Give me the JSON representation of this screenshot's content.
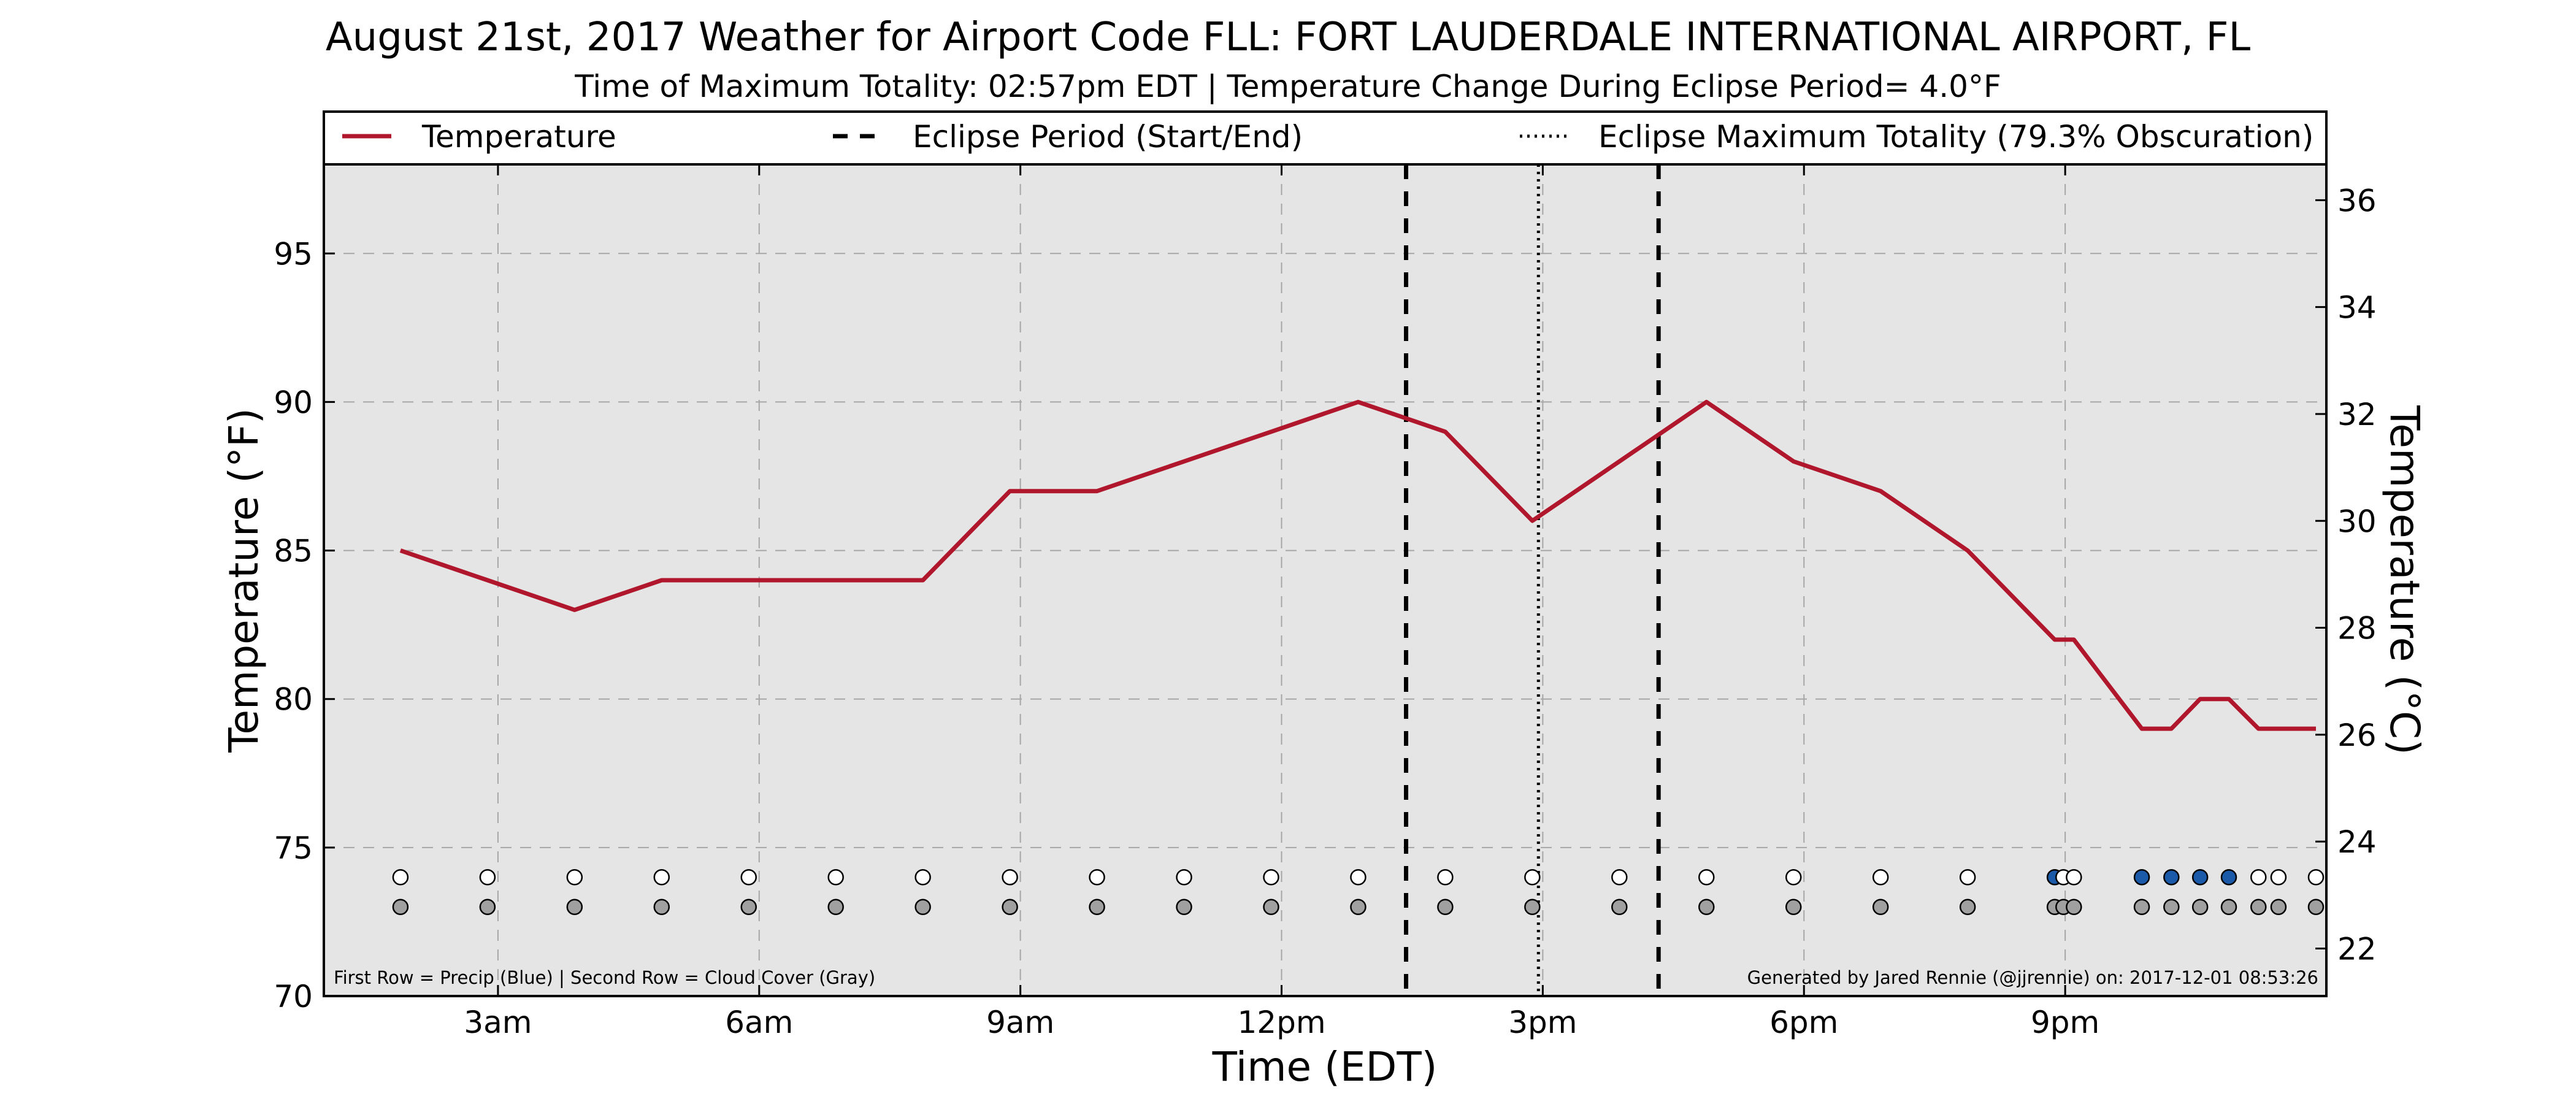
{
  "title": "August 21st, 2017 Weather for Airport Code FLL: FORT LAUDERDALE INTERNATIONAL AIRPORT, FL",
  "subtitle": "Time of Maximum Totality: 02:57pm EDT | Temperature Change During Eclipse Period= 4.0°F",
  "footnote_left": "First Row = Precip (Blue) | Second Row = Cloud Cover (Gray)",
  "footnote_right": "Generated by Jared Rennie (@jjrennie) on: 2017-12-01 08:53:26",
  "colors": {
    "temperature_line": "#b0172c",
    "plot_background": "#e5e5e5",
    "precip_dot": "#1a5aa8",
    "no_precip_dot": "#ffffff",
    "cloud_dot": "#a0a0a0"
  },
  "chart_data": {
    "type": "line",
    "title": "August 21st, 2017 Weather for Airport Code FLL: FORT LAUDERDALE INTERNATIONAL AIRPORT, FL",
    "xlabel": "Time (EDT)",
    "ylabel": "Temperature (°F)",
    "ylabel_right": "Temperature (°C)",
    "xlim": [
      1.0,
      24.0
    ],
    "ylim": [
      70,
      98
    ],
    "ylim_right_c": [
      21.11,
      36.67
    ],
    "grid": true,
    "legend_placement": "top",
    "x_ticks": [
      {
        "x": 3,
        "label": "3am"
      },
      {
        "x": 6,
        "label": "6am"
      },
      {
        "x": 9,
        "label": "9am"
      },
      {
        "x": 12,
        "label": "12pm"
      },
      {
        "x": 15,
        "label": "3pm"
      },
      {
        "x": 18,
        "label": "6pm"
      },
      {
        "x": 21,
        "label": "9pm"
      }
    ],
    "y_ticks": [
      {
        "y": 70,
        "label": "70"
      },
      {
        "y": 75,
        "label": "75"
      },
      {
        "y": 80,
        "label": "80"
      },
      {
        "y": 85,
        "label": "85"
      },
      {
        "y": 90,
        "label": "90"
      },
      {
        "y": 95,
        "label": "95"
      }
    ],
    "y_ticks_right": [
      {
        "c": 22,
        "label": "22"
      },
      {
        "c": 24,
        "label": "24"
      },
      {
        "c": 26,
        "label": "26"
      },
      {
        "c": 28,
        "label": "28"
      },
      {
        "c": 30,
        "label": "30"
      },
      {
        "c": 32,
        "label": "32"
      },
      {
        "c": 34,
        "label": "34"
      },
      {
        "c": 36,
        "label": "36"
      }
    ],
    "legend": [
      {
        "label": "Temperature",
        "style": "solid"
      },
      {
        "label": "Eclipse Period (Start/End)",
        "style": "dashed"
      },
      {
        "label": "Eclipse Maximum Totality (79.3% Obscuration)",
        "style": "dotted"
      }
    ],
    "series": [
      {
        "name": "Temperature",
        "x": [
          1.88,
          2.88,
          3.88,
          4.88,
          5.88,
          6.88,
          7.88,
          8.88,
          9.88,
          10.88,
          11.88,
          12.88,
          13.88,
          14.88,
          15.88,
          16.88,
          17.88,
          18.88,
          19.88,
          20.88,
          21.1,
          21.88,
          22.22,
          22.55,
          22.88,
          23.22,
          23.55,
          23.88
        ],
        "y": [
          85,
          84,
          83,
          84,
          84,
          84,
          84,
          87,
          87,
          88,
          89,
          90,
          89,
          86,
          88,
          90,
          88,
          87,
          85,
          82,
          82,
          79,
          79,
          80,
          80,
          79,
          79,
          79
        ]
      }
    ],
    "eclipse_start": 13.43,
    "eclipse_max": 14.95,
    "eclipse_end": 16.33,
    "marker_rows": {
      "precip_y": 74,
      "cloud_y": 73,
      "observations": [
        {
          "x": 1.88,
          "precip": false
        },
        {
          "x": 2.88,
          "precip": false
        },
        {
          "x": 3.88,
          "precip": false
        },
        {
          "x": 4.88,
          "precip": false
        },
        {
          "x": 5.88,
          "precip": false
        },
        {
          "x": 6.88,
          "precip": false
        },
        {
          "x": 7.88,
          "precip": false
        },
        {
          "x": 8.88,
          "precip": false
        },
        {
          "x": 9.88,
          "precip": false
        },
        {
          "x": 10.88,
          "precip": false
        },
        {
          "x": 11.88,
          "precip": false
        },
        {
          "x": 12.88,
          "precip": false
        },
        {
          "x": 13.88,
          "precip": false
        },
        {
          "x": 14.88,
          "precip": false
        },
        {
          "x": 15.88,
          "precip": false
        },
        {
          "x": 16.88,
          "precip": false
        },
        {
          "x": 17.88,
          "precip": false
        },
        {
          "x": 18.88,
          "precip": false
        },
        {
          "x": 19.88,
          "precip": false
        },
        {
          "x": 20.88,
          "precip": true
        },
        {
          "x": 20.98,
          "precip": false
        },
        {
          "x": 21.1,
          "precip": false
        },
        {
          "x": 21.88,
          "precip": true
        },
        {
          "x": 22.22,
          "precip": true
        },
        {
          "x": 22.55,
          "precip": true
        },
        {
          "x": 22.88,
          "precip": true
        },
        {
          "x": 23.22,
          "precip": false
        },
        {
          "x": 23.45,
          "precip": false
        },
        {
          "x": 23.88,
          "precip": false
        }
      ]
    }
  }
}
